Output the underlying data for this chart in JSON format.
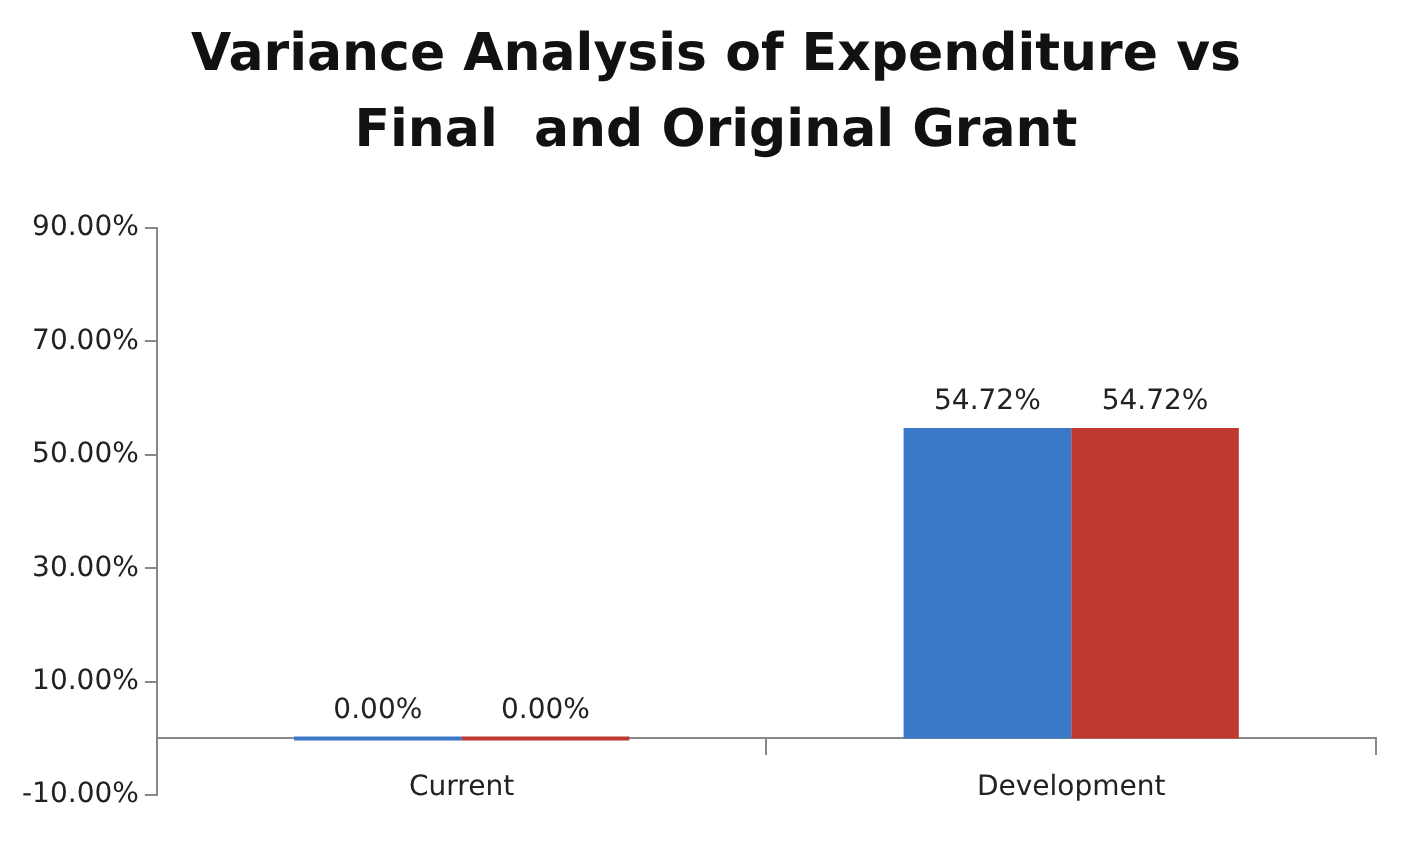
{
  "chart_data": {
    "type": "bar",
    "title": "Variance Analysis of Expenditure vs Final  and Original Grant",
    "categories": [
      "Current",
      "Development"
    ],
    "series": [
      {
        "color": "#3a78c8",
        "values": [
          0,
          54.72
        ],
        "value_labels": [
          "0.00%",
          "54.72%"
        ]
      },
      {
        "color": "#c0392f",
        "values": [
          0,
          54.72
        ],
        "value_labels": [
          "0.00%",
          "54.72%"
        ]
      }
    ],
    "ylim": [
      -10,
      90
    ],
    "yticks": [
      {
        "value": -10,
        "label": "-10.00%"
      },
      {
        "value": 10,
        "label": "10.00%"
      },
      {
        "value": 30,
        "label": "30.00%"
      },
      {
        "value": 50,
        "label": "50.00%"
      },
      {
        "value": 70,
        "label": "70.00%"
      },
      {
        "value": 90,
        "label": "90.00%"
      }
    ],
    "grid": false,
    "legend": false
  }
}
